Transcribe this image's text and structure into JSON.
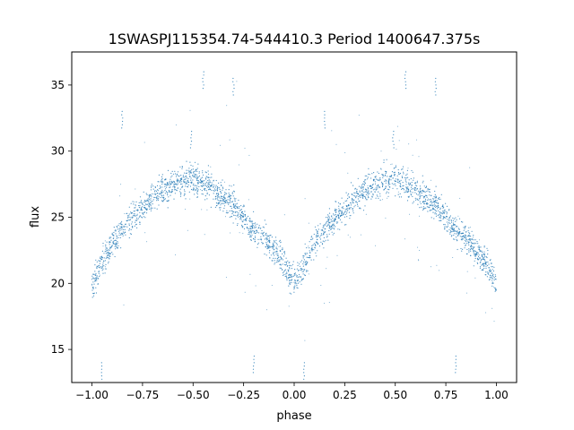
{
  "chart_data": {
    "type": "scatter",
    "title": "1SWASPJ115354.74-544410.3 Period 1400647.375s",
    "xlabel": "phase",
    "ylabel": "flux",
    "xlim": [
      -1.1,
      1.1
    ],
    "ylim": [
      12.5,
      37.5
    ],
    "x_ticks": [
      -1.0,
      -0.75,
      -0.5,
      -0.25,
      0.0,
      0.25,
      0.5,
      0.75,
      1.0
    ],
    "x_tick_labels": [
      "−1.00",
      "−0.75",
      "−0.50",
      "−0.25",
      "0.00",
      "0.25",
      "0.50",
      "0.75",
      "1.00"
    ],
    "y_ticks": [
      15,
      20,
      25,
      30,
      35
    ],
    "y_tick_labels": [
      "15",
      "20",
      "25",
      "30",
      "35"
    ],
    "grid": false,
    "legend": "none",
    "marker_color": "#1f77b4",
    "series": [
      {
        "x": [
          -1.0,
          -0.97,
          -0.95,
          -0.9,
          -0.85,
          -0.8,
          -0.75,
          -0.7,
          -0.65,
          -0.6,
          -0.55,
          -0.5,
          -0.45,
          -0.4,
          -0.35,
          -0.3,
          -0.25,
          -0.2,
          -0.15,
          -0.1,
          -0.05,
          -0.03,
          0.0,
          0.03,
          0.05,
          0.1,
          0.15,
          0.2,
          0.25,
          0.3,
          0.35,
          0.4,
          0.45,
          0.5,
          0.55,
          0.6,
          0.65,
          0.7,
          0.75,
          0.8,
          0.85,
          0.9,
          0.95,
          0.97,
          1.0
        ],
        "y": [
          20.0,
          20.8,
          21.5,
          23.0,
          24.0,
          25.0,
          25.6,
          26.4,
          27.0,
          27.3,
          27.8,
          28.0,
          27.6,
          27.0,
          26.5,
          26.0,
          25.0,
          24.0,
          23.5,
          22.5,
          21.5,
          20.8,
          20.0,
          20.8,
          21.5,
          23.0,
          24.0,
          25.0,
          25.6,
          26.4,
          27.0,
          27.3,
          27.8,
          28.0,
          27.6,
          27.0,
          26.5,
          26.0,
          25.0,
          24.0,
          23.5,
          22.5,
          21.5,
          20.8,
          20.0
        ]
      }
    ],
    "spike_points": [
      {
        "x": -0.51,
        "y": 31.5
      },
      {
        "x": 0.49,
        "y": 31.5
      },
      {
        "x": -0.3,
        "y": 35.5
      },
      {
        "x": 0.7,
        "y": 35.5
      },
      {
        "x": -0.85,
        "y": 33.0
      },
      {
        "x": 0.15,
        "y": 33.0
      },
      {
        "x": -0.95,
        "y": 14.0
      },
      {
        "x": 0.05,
        "y": 14.0
      },
      {
        "x": -0.2,
        "y": 14.5
      },
      {
        "x": 0.8,
        "y": 14.5
      },
      {
        "x": -0.45,
        "y": 36.0
      },
      {
        "x": 0.55,
        "y": 36.0
      }
    ]
  }
}
